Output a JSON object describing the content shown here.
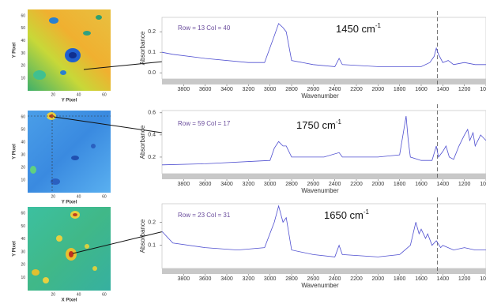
{
  "maps": [
    {
      "x_label": "Y Pixel",
      "y_label": "Y Pixel",
      "xlim": [
        0,
        65
      ],
      "ylim": [
        0,
        65
      ],
      "xticks": [
        20,
        40,
        60
      ],
      "yticks": [
        10,
        20,
        30,
        40,
        50,
        60
      ]
    },
    {
      "x_label": "Y Pixel",
      "y_label": "Y Pixel",
      "xlim": [
        0,
        65
      ],
      "ylim": [
        0,
        65
      ],
      "xticks": [
        20,
        40,
        60
      ],
      "yticks": [
        10,
        20,
        30,
        40,
        50,
        60
      ]
    },
    {
      "x_label": "X Pixel",
      "y_label": "Y Pixel",
      "xlim": [
        0,
        65
      ],
      "ylim": [
        0,
        65
      ],
      "xticks": [
        20,
        40,
        60
      ],
      "yticks": [
        10,
        20,
        30,
        40,
        50,
        60
      ]
    }
  ],
  "chart_data": [
    {
      "type": "line",
      "x_label": "Wavenumber",
      "y_label": "Absorbance",
      "annotation": "Row = 13 Col = 40",
      "peak_label": {
        "text": "1450 cm",
        "sup": "-1"
      },
      "marker_x": 1450,
      "color": "#4f4fd0",
      "xlim": [
        4000,
        1000
      ],
      "ylim": [
        -0.03,
        0.27
      ],
      "xticks": [
        3800,
        3600,
        3400,
        3200,
        3000,
        2800,
        2600,
        2400,
        2200,
        2000,
        1800,
        1600,
        1400,
        1200,
        1000
      ],
      "yticks": [
        {
          "value": 0,
          "label": "0.0"
        },
        0.1,
        0.2
      ],
      "x": [
        4000,
        3900,
        3600,
        3200,
        3050,
        2960,
        2920,
        2880,
        2850,
        2800,
        2600,
        2400,
        2360,
        2330,
        2000,
        1800,
        1600,
        1520,
        1480,
        1460,
        1440,
        1400,
        1350,
        1300,
        1200,
        1100,
        1000
      ],
      "values": [
        0.1,
        0.09,
        0.07,
        0.05,
        0.05,
        0.18,
        0.24,
        0.22,
        0.2,
        0.06,
        0.04,
        0.03,
        0.07,
        0.04,
        0.03,
        0.03,
        0.03,
        0.05,
        0.08,
        0.12,
        0.09,
        0.05,
        0.06,
        0.04,
        0.05,
        0.04,
        0.04
      ]
    },
    {
      "type": "line",
      "x_label": "Wavenumber",
      "y_label": "Absorbance",
      "annotation": "Row = 59 Col = 17",
      "peak_label": {
        "text": "1750 cm",
        "sup": "-1"
      },
      "marker_x": 1450,
      "color": "#4f4fd0",
      "xlim": [
        4000,
        1000
      ],
      "ylim": [
        0.05,
        0.62
      ],
      "xticks": [
        3800,
        3600,
        3400,
        3200,
        3000,
        2800,
        2600,
        2400,
        2200,
        2000,
        1800,
        1600,
        1400,
        1200,
        1000
      ],
      "yticks": [
        0.2,
        0.4,
        0.6
      ],
      "x": [
        4000,
        3600,
        3000,
        2960,
        2920,
        2880,
        2850,
        2800,
        2500,
        2360,
        2330,
        2000,
        1800,
        1760,
        1740,
        1720,
        1700,
        1600,
        1500,
        1460,
        1440,
        1400,
        1370,
        1340,
        1300,
        1250,
        1200,
        1170,
        1150,
        1120,
        1100,
        1050,
        1000
      ],
      "values": [
        0.13,
        0.14,
        0.17,
        0.28,
        0.34,
        0.3,
        0.3,
        0.2,
        0.2,
        0.24,
        0.2,
        0.2,
        0.22,
        0.45,
        0.57,
        0.35,
        0.2,
        0.17,
        0.17,
        0.3,
        0.2,
        0.25,
        0.3,
        0.2,
        0.18,
        0.3,
        0.4,
        0.45,
        0.35,
        0.42,
        0.3,
        0.4,
        0.35
      ]
    },
    {
      "type": "line",
      "x_label": "Wavenumber",
      "y_label": "Absorbance",
      "annotation": "Row = 23 Col = 31",
      "peak_label": {
        "text": "1650 cm",
        "sup": "-1"
      },
      "marker_x": 1450,
      "color": "#4f4fd0",
      "xlim": [
        4000,
        1000
      ],
      "ylim": [
        0.0,
        0.28
      ],
      "xticks": [
        3800,
        3600,
        3400,
        3200,
        3000,
        2800,
        2600,
        2400,
        2200,
        2000,
        1800,
        1600,
        1400,
        1200,
        1000
      ],
      "yticks": [
        0.1,
        0.2
      ],
      "x": [
        4000,
        3900,
        3600,
        3300,
        3050,
        2960,
        2920,
        2880,
        2850,
        2800,
        2600,
        2400,
        2360,
        2330,
        2000,
        1800,
        1700,
        1650,
        1620,
        1600,
        1560,
        1540,
        1500,
        1460,
        1420,
        1400,
        1300,
        1200,
        1100,
        1000
      ],
      "values": [
        0.16,
        0.11,
        0.09,
        0.08,
        0.09,
        0.2,
        0.27,
        0.2,
        0.22,
        0.08,
        0.06,
        0.05,
        0.1,
        0.06,
        0.05,
        0.06,
        0.1,
        0.2,
        0.15,
        0.17,
        0.13,
        0.15,
        0.1,
        0.12,
        0.09,
        0.1,
        0.08,
        0.09,
        0.08,
        0.08
      ]
    }
  ]
}
